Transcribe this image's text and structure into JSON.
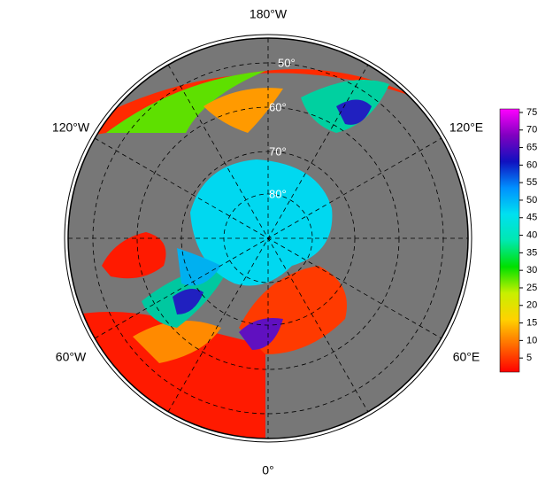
{
  "map": {
    "lon_labels": [
      "180°W",
      "120°W",
      "120°E",
      "60°W",
      "60°E",
      "0°"
    ],
    "lat_labels": [
      "50°",
      "60°",
      "70°",
      "80°"
    ],
    "colorbar": {
      "lim": [
        1,
        76
      ],
      "ticks": [
        5,
        10,
        15,
        20,
        25,
        30,
        35,
        40,
        45,
        50,
        55,
        60,
        65,
        70,
        75
      ],
      "colors": [
        "#ff0000",
        "#ff6a00",
        "#ffd200",
        "#c8f000",
        "#00e000",
        "#00e8b0",
        "#00e0f0",
        "#0090ff",
        "#1010c0",
        "#8000c0",
        "#ff00ff"
      ]
    }
  }
}
